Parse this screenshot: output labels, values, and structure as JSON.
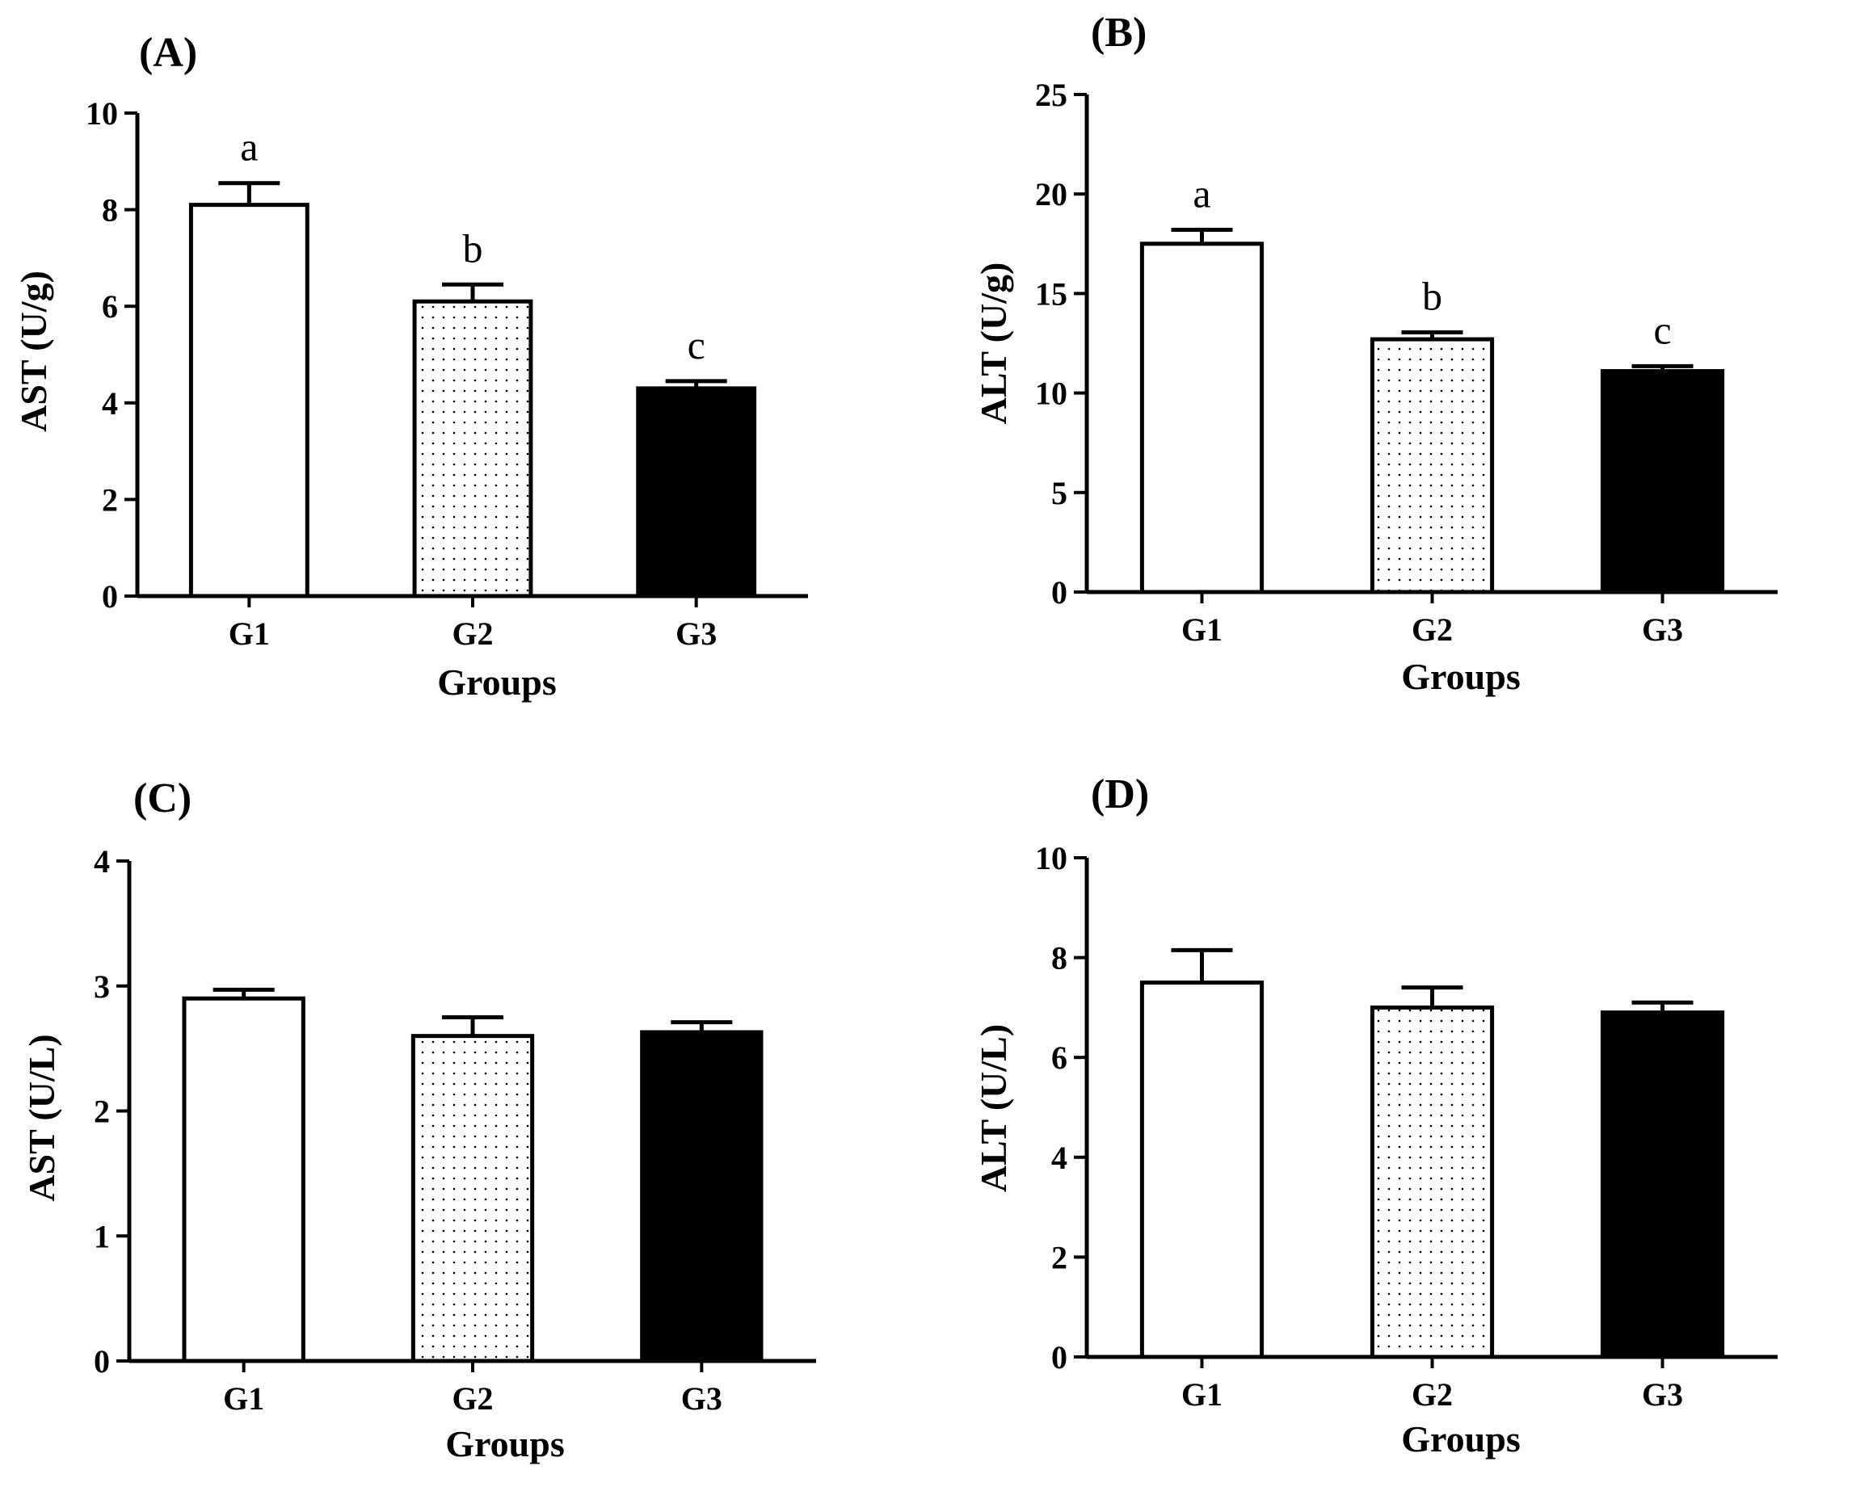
{
  "chart_data": [
    {
      "type": "bar",
      "panel_label": "(A)",
      "categories": [
        "G1",
        "G2",
        "G3"
      ],
      "values": [
        8.1,
        6.1,
        4.3
      ],
      "errors": [
        0.45,
        0.35,
        0.15
      ],
      "significance": [
        "a",
        "b",
        "c"
      ],
      "fills": [
        "white",
        "dotted",
        "black"
      ],
      "xlabel": "Groups",
      "ylabel": "AST (U/g)",
      "ylim": [
        0,
        10
      ],
      "yticks": [
        0,
        2,
        4,
        6,
        8,
        10
      ]
    },
    {
      "type": "bar",
      "panel_label": "(B)",
      "categories": [
        "G1",
        "G2",
        "G3"
      ],
      "values": [
        17.5,
        12.7,
        11.1
      ],
      "errors": [
        0.7,
        0.35,
        0.25
      ],
      "significance": [
        "a",
        "b",
        "c"
      ],
      "fills": [
        "white",
        "dotted",
        "black"
      ],
      "xlabel": "Groups",
      "ylabel": "ALT (U/g)",
      "ylim": [
        0,
        25
      ],
      "yticks": [
        0,
        5,
        10,
        15,
        20,
        25
      ]
    },
    {
      "type": "bar",
      "panel_label": "(C)",
      "categories": [
        "G1",
        "G2",
        "G3"
      ],
      "values": [
        2.9,
        2.6,
        2.63
      ],
      "errors": [
        0.07,
        0.15,
        0.08
      ],
      "significance": [
        "",
        "",
        ""
      ],
      "fills": [
        "white",
        "dotted",
        "black"
      ],
      "xlabel": "Groups",
      "ylabel": "AST (U/L)",
      "ylim": [
        0,
        4
      ],
      "yticks": [
        0,
        1,
        2,
        3,
        4
      ]
    },
    {
      "type": "bar",
      "panel_label": "(D)",
      "categories": [
        "G1",
        "G2",
        "G3"
      ],
      "values": [
        7.5,
        7.0,
        6.9
      ],
      "errors": [
        0.65,
        0.4,
        0.2
      ],
      "significance": [
        "",
        "",
        ""
      ],
      "fills": [
        "white",
        "dotted",
        "black"
      ],
      "xlabel": "Groups",
      "ylabel": "ALT (U/L)",
      "ylim": [
        0,
        10
      ],
      "yticks": [
        0,
        2,
        4,
        6,
        8,
        10
      ]
    }
  ],
  "colors": {
    "ink": "#000000",
    "background": "#ffffff"
  }
}
